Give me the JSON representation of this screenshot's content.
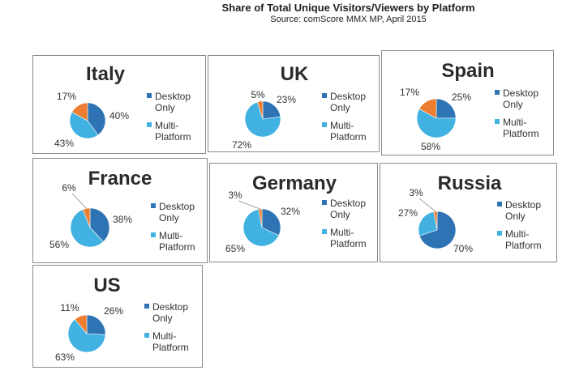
{
  "header": {
    "title": "Share of Total Unique Visitors/Viewers by Platform",
    "source": "Source: comScore MMX MP, April 2015"
  },
  "colors": {
    "desktop_only": "#2e74b5",
    "multi_platform": "#41b1e1",
    "mobile_only": "#ed7d31"
  },
  "legend": {
    "desktop_line1": "Desktop",
    "desktop_line2": "Only",
    "multi_line1": "Multi-",
    "multi_line2": "Platform"
  },
  "chart_data": [
    {
      "type": "pie",
      "title": "Italy",
      "slices": [
        {
          "series": "Desktop Only",
          "value": 40,
          "label": "40%"
        },
        {
          "series": "Multi-Platform",
          "value": 43,
          "label": "43%"
        },
        {
          "value": 17,
          "label": "17%"
        }
      ]
    },
    {
      "type": "pie",
      "title": "UK",
      "slices": [
        {
          "series": "Desktop Only",
          "value": 23,
          "label": "23%"
        },
        {
          "series": "Multi-Platform",
          "value": 72,
          "label": "72%"
        },
        {
          "value": 5,
          "label": "5%"
        }
      ]
    },
    {
      "type": "pie",
      "title": "Spain",
      "slices": [
        {
          "series": "Desktop Only",
          "value": 25,
          "label": "25%"
        },
        {
          "series": "Multi-Platform",
          "value": 58,
          "label": "58%"
        },
        {
          "value": 17,
          "label": "17%"
        }
      ]
    },
    {
      "type": "pie",
      "title": "France",
      "slices": [
        {
          "series": "Desktop Only",
          "value": 38,
          "label": "38%"
        },
        {
          "series": "Multi-Platform",
          "value": 56,
          "label": "56%"
        },
        {
          "value": 6,
          "label": "6%"
        }
      ]
    },
    {
      "type": "pie",
      "title": "Germany",
      "slices": [
        {
          "series": "Desktop Only",
          "value": 32,
          "label": "32%"
        },
        {
          "series": "Multi-Platform",
          "value": 65,
          "label": "65%"
        },
        {
          "value": 3,
          "label": "3%"
        }
      ]
    },
    {
      "type": "pie",
      "title": "Russia",
      "slices": [
        {
          "series": "Desktop Only",
          "value": 70,
          "label": "70%"
        },
        {
          "series": "Multi-Platform",
          "value": 27,
          "label": "27%"
        },
        {
          "value": 3,
          "label": "3%"
        }
      ]
    },
    {
      "type": "pie",
      "title": "US",
      "slices": [
        {
          "series": "Desktop Only",
          "value": 26,
          "label": "26%"
        },
        {
          "series": "Multi-Platform",
          "value": 63,
          "label": "63%"
        },
        {
          "value": 11,
          "label": "11%"
        }
      ]
    }
  ]
}
